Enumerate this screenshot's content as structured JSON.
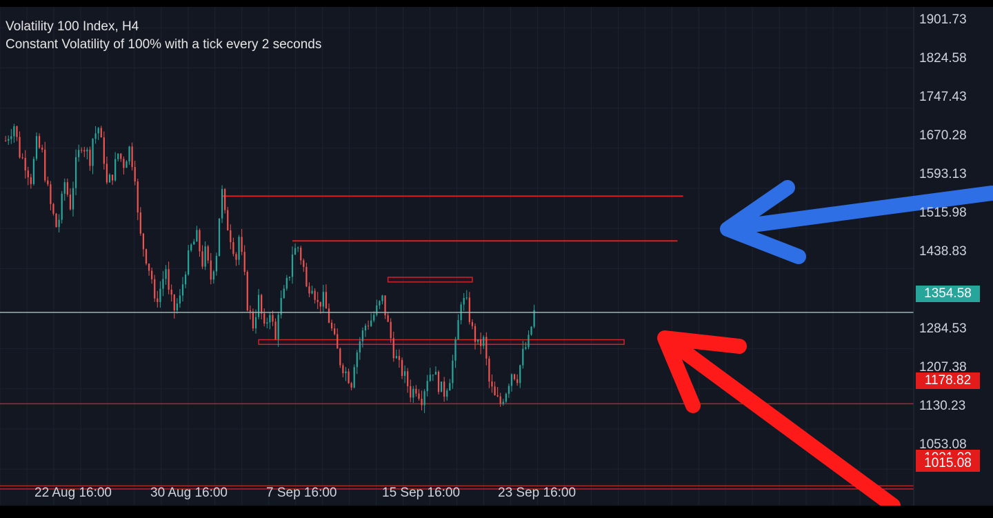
{
  "chart_data": {
    "type": "candlestick",
    "symbol_title": "Volatility 100 Index, H4",
    "subtitle": "Constant Volatility of 100% with a tick every 2 seconds",
    "y_axis": {
      "ticks": [
        "1901.73",
        "1824.58",
        "1747.43",
        "1670.28",
        "1593.13",
        "1515.98",
        "1438.83",
        "1284.53",
        "1207.38",
        "1130.23",
        "1053.08"
      ],
      "range": [
        983.0,
        1942.0
      ]
    },
    "x_axis": {
      "ticks": [
        "22 Aug 16:00",
        "30 Aug 16:00",
        "7 Sep 16:00",
        "15 Sep 16:00",
        "23 Sep 16:00"
      ],
      "tick_positions": [
        8,
        48,
        88,
        128,
        168
      ],
      "range": [
        -20,
        305
      ]
    },
    "current_price": {
      "label": "1354.58",
      "value": 1354.58,
      "color": "#26a69a"
    },
    "horizontal_levels": [
      {
        "label": "1178.82",
        "value": 1178.82,
        "color": "#e31b1b"
      },
      {
        "label": "1015.08",
        "value": 1015.08,
        "color": "#e31b1b"
      },
      {
        "label": "1021.03",
        "value": 1021.03,
        "color": "#e31b1b"
      }
    ],
    "rays": [
      {
        "start": 59,
        "end": 223,
        "value": 1578
      },
      {
        "start": 84,
        "end": 221,
        "value": 1492
      }
    ],
    "zones": [
      {
        "start": 118,
        "end": 148,
        "top": 1422,
        "bottom": 1413
      },
      {
        "start": 72,
        "end": 202,
        "top": 1302,
        "bottom": 1293
      }
    ],
    "series": [
      {
        "name": "price",
        "color_up": "#26a69a",
        "color_down": "#ef5350",
        "anchors": [
          [
            -18,
            1685
          ],
          [
            -15,
            1715
          ],
          [
            -13,
            1660
          ],
          [
            -11,
            1640
          ],
          [
            -9,
            1610
          ],
          [
            -7,
            1680
          ],
          [
            -5,
            1660
          ],
          [
            -4,
            1620
          ],
          [
            -2,
            1560
          ],
          [
            0,
            1520
          ],
          [
            1,
            1535
          ],
          [
            3,
            1605
          ],
          [
            5,
            1560
          ],
          [
            7,
            1640
          ],
          [
            9,
            1680
          ],
          [
            10,
            1672
          ],
          [
            12,
            1650
          ],
          [
            13,
            1690
          ],
          [
            15,
            1710
          ],
          [
            17,
            1650
          ],
          [
            18,
            1600
          ],
          [
            20,
            1620
          ],
          [
            22,
            1660
          ],
          [
            24,
            1640
          ],
          [
            26,
            1670
          ],
          [
            28,
            1620
          ],
          [
            29,
            1540
          ],
          [
            30,
            1500
          ],
          [
            32,
            1460
          ],
          [
            34,
            1420
          ],
          [
            35,
            1370
          ],
          [
            37,
            1400
          ],
          [
            39,
            1440
          ],
          [
            40,
            1390
          ],
          [
            42,
            1360
          ],
          [
            44,
            1380
          ],
          [
            46,
            1440
          ],
          [
            48,
            1480
          ],
          [
            50,
            1500
          ],
          [
            52,
            1450
          ],
          [
            53,
            1470
          ],
          [
            55,
            1420
          ],
          [
            57,
            1470
          ],
          [
            58,
            1540
          ],
          [
            59,
            1585
          ],
          [
            60,
            1540
          ],
          [
            62,
            1500
          ],
          [
            64,
            1460
          ],
          [
            65,
            1500
          ],
          [
            67,
            1420
          ],
          [
            68,
            1370
          ],
          [
            70,
            1330
          ],
          [
            72,
            1380
          ],
          [
            74,
            1320
          ],
          [
            76,
            1360
          ],
          [
            78,
            1300
          ],
          [
            79,
            1360
          ],
          [
            81,
            1390
          ],
          [
            83,
            1430
          ],
          [
            84,
            1470
          ],
          [
            86,
            1480
          ],
          [
            88,
            1440
          ],
          [
            89,
            1400
          ],
          [
            91,
            1410
          ],
          [
            93,
            1370
          ],
          [
            95,
            1380
          ],
          [
            97,
            1340
          ],
          [
            99,
            1300
          ],
          [
            101,
            1260
          ],
          [
            103,
            1240
          ],
          [
            105,
            1220
          ],
          [
            106,
            1260
          ],
          [
            108,
            1300
          ],
          [
            110,
            1330
          ],
          [
            112,
            1340
          ],
          [
            114,
            1360
          ],
          [
            116,
            1380
          ],
          [
            118,
            1330
          ],
          [
            120,
            1280
          ],
          [
            122,
            1250
          ],
          [
            124,
            1230
          ],
          [
            126,
            1200
          ],
          [
            128,
            1210
          ],
          [
            130,
            1190
          ],
          [
            132,
            1230
          ],
          [
            134,
            1245
          ],
          [
            136,
            1215
          ],
          [
            138,
            1200
          ],
          [
            140,
            1230
          ],
          [
            142,
            1290
          ],
          [
            144,
            1380
          ],
          [
            146,
            1370
          ],
          [
            148,
            1320
          ],
          [
            150,
            1290
          ],
          [
            152,
            1300
          ],
          [
            154,
            1220
          ],
          [
            156,
            1190
          ],
          [
            158,
            1180
          ],
          [
            160,
            1205
          ],
          [
            162,
            1240
          ],
          [
            164,
            1230
          ],
          [
            166,
            1275
          ],
          [
            168,
            1300
          ],
          [
            170,
            1355
          ]
        ]
      }
    ]
  },
  "annotations": {
    "blue_arrow_color": "#2f6fe6",
    "red_arrow_color": "#ff1a1a",
    "arrows": [
      "arrow pointing at upper resistance lines",
      "arrow pointing at lower support zone"
    ]
  }
}
